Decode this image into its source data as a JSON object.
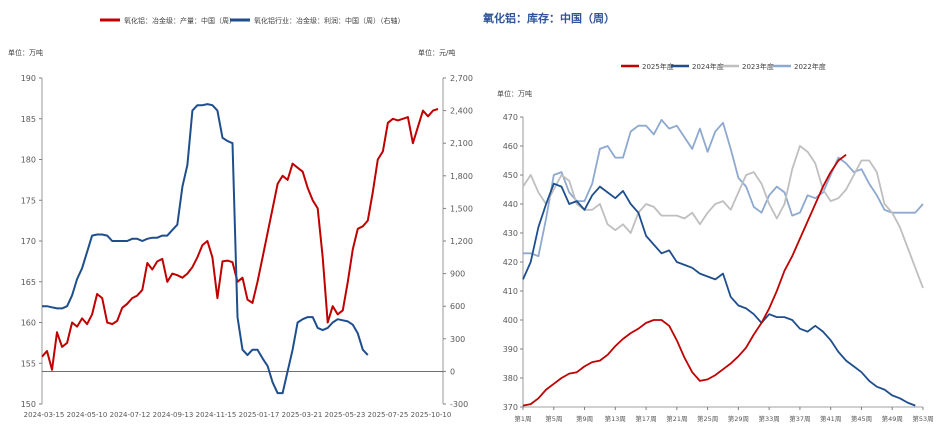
{
  "chart_data": [
    {
      "type": "line",
      "title": "",
      "legend": [
        {
          "name": "氧化铝：冶金级：产量：中国（周）",
          "color": "#c00000",
          "axis": "left"
        },
        {
          "name": "氧化铝行业：冶金级：利润：中国（周）（右轴）",
          "color": "#1f4e8c",
          "axis": "right"
        }
      ],
      "left_unit": "单位：万吨",
      "right_unit": "单位：元/吨",
      "left_ylim": [
        150,
        190
      ],
      "left_ticks": [
        "150",
        "155",
        "160",
        "165",
        "170",
        "175",
        "180",
        "185",
        "190"
      ],
      "right_ylim": [
        -300,
        2700
      ],
      "right_ticks": [
        "-300",
        "0",
        "300",
        "600",
        "900",
        "1,200",
        "1,500",
        "1,800",
        "2,100",
        "2,400",
        "2,700"
      ],
      "x_ticks": [
        "2024-03-15",
        "2024-05-10",
        "2024-07-12",
        "2024-09-13",
        "2024-11-15",
        "2025-01-17",
        "2025-03-21",
        "2025-05-23",
        "2025-07-25",
        "2025-10-10"
      ],
      "series": [
        {
          "name": "氧化铝：冶金级：产量：中国（周）",
          "axis": "left",
          "values": [
            [
              0,
              155.8
            ],
            [
              1,
              156.5
            ],
            [
              2,
              154.2
            ],
            [
              3,
              158.8
            ],
            [
              4,
              157.0
            ],
            [
              5,
              157.5
            ],
            [
              6,
              160.0
            ],
            [
              7,
              159.5
            ],
            [
              8,
              160.5
            ],
            [
              9,
              159.8
            ],
            [
              10,
              161.0
            ],
            [
              11,
              163.5
            ],
            [
              12,
              163.0
            ],
            [
              13,
              160.0
            ],
            [
              14,
              159.8
            ],
            [
              15,
              160.2
            ],
            [
              16,
              161.8
            ],
            [
              17,
              162.3
            ],
            [
              18,
              163.0
            ],
            [
              19,
              163.3
            ],
            [
              20,
              164.0
            ],
            [
              21,
              167.3
            ],
            [
              22,
              166.5
            ],
            [
              23,
              167.5
            ],
            [
              24,
              167.8
            ],
            [
              25,
              165.0
            ],
            [
              26,
              166.0
            ],
            [
              27,
              165.8
            ],
            [
              28,
              165.5
            ],
            [
              29,
              166.0
            ],
            [
              30,
              166.8
            ],
            [
              31,
              168.0
            ],
            [
              32,
              169.5
            ],
            [
              33,
              170.0
            ],
            [
              34,
              168.0
            ],
            [
              35,
              163.0
            ],
            [
              36,
              167.5
            ],
            [
              37,
              167.6
            ],
            [
              38,
              167.4
            ],
            [
              39,
              165.0
            ],
            [
              40,
              165.5
            ],
            [
              41,
              162.8
            ],
            [
              42,
              162.4
            ],
            [
              43,
              165.0
            ],
            [
              44,
              168.0
            ],
            [
              45,
              171.0
            ],
            [
              46,
              174.0
            ],
            [
              47,
              177.0
            ],
            [
              48,
              178.0
            ],
            [
              49,
              177.5
            ],
            [
              50,
              179.5
            ],
            [
              51,
              179.0
            ],
            [
              52,
              178.5
            ],
            [
              53,
              176.5
            ],
            [
              54,
              175.0
            ],
            [
              55,
              174.0
            ],
            [
              56,
              168.0
            ],
            [
              57,
              160.0
            ],
            [
              58,
              162.0
            ],
            [
              59,
              161.0
            ],
            [
              60,
              161.5
            ],
            [
              61,
              165.0
            ],
            [
              62,
              169.0
            ],
            [
              63,
              171.5
            ],
            [
              64,
              171.8
            ],
            [
              65,
              172.5
            ],
            [
              66,
              176.0
            ],
            [
              67,
              180.0
            ],
            [
              68,
              181.0
            ],
            [
              69,
              184.5
            ],
            [
              70,
              185.0
            ],
            [
              71,
              184.8
            ],
            [
              72,
              185.0
            ],
            [
              73,
              185.2
            ],
            [
              74,
              182.0
            ],
            [
              75,
              184.0
            ],
            [
              76,
              186.0
            ],
            [
              77,
              185.3
            ],
            [
              78,
              186.0
            ],
            [
              79,
              186.2
            ]
          ]
        },
        {
          "name": "氧化铝行业：冶金级：利润：中国（周）（右轴）",
          "axis": "right",
          "values": [
            [
              0,
              600
            ],
            [
              1,
              600
            ],
            [
              2,
              590
            ],
            [
              3,
              580
            ],
            [
              4,
              580
            ],
            [
              5,
              600
            ],
            [
              6,
              700
            ],
            [
              7,
              850
            ],
            [
              8,
              950
            ],
            [
              9,
              1100
            ],
            [
              10,
              1250
            ],
            [
              11,
              1260
            ],
            [
              12,
              1260
            ],
            [
              13,
              1250
            ],
            [
              14,
              1200
            ],
            [
              15,
              1200
            ],
            [
              16,
              1200
            ],
            [
              17,
              1200
            ],
            [
              18,
              1220
            ],
            [
              19,
              1220
            ],
            [
              20,
              1200
            ],
            [
              21,
              1220
            ],
            [
              22,
              1230
            ],
            [
              23,
              1230
            ],
            [
              24,
              1250
            ],
            [
              25,
              1250
            ],
            [
              26,
              1300
            ],
            [
              27,
              1350
            ],
            [
              28,
              1700
            ],
            [
              29,
              1900
            ],
            [
              30,
              2400
            ],
            [
              31,
              2450
            ],
            [
              32,
              2450
            ],
            [
              33,
              2460
            ],
            [
              34,
              2450
            ],
            [
              35,
              2400
            ],
            [
              36,
              2150
            ],
            [
              37,
              2120
            ],
            [
              38,
              2100
            ],
            [
              39,
              500
            ],
            [
              40,
              200
            ],
            [
              41,
              150
            ],
            [
              42,
              200
            ],
            [
              43,
              200
            ],
            [
              44,
              120
            ],
            [
              45,
              50
            ],
            [
              46,
              -100
            ],
            [
              47,
              -200
            ],
            [
              48,
              -200
            ],
            [
              49,
              0
            ],
            [
              50,
              200
            ],
            [
              51,
              450
            ],
            [
              52,
              480
            ],
            [
              53,
              500
            ],
            [
              54,
              500
            ],
            [
              55,
              400
            ],
            [
              56,
              380
            ],
            [
              57,
              400
            ],
            [
              58,
              450
            ],
            [
              59,
              480
            ],
            [
              60,
              470
            ],
            [
              61,
              460
            ],
            [
              62,
              430
            ],
            [
              63,
              350
            ],
            [
              64,
              200
            ],
            [
              65,
              150
            ]
          ]
        }
      ]
    },
    {
      "type": "line",
      "title": "氧化铝：库存：中国（周）",
      "unit": "单位：万吨",
      "ylim": [
        370,
        470
      ],
      "y_ticks": [
        "370",
        "380",
        "390",
        "400",
        "410",
        "420",
        "430",
        "440",
        "450",
        "460",
        "470"
      ],
      "x_ticks": [
        "第1周",
        "第5周",
        "第9周",
        "第13周",
        "第17周",
        "第21周",
        "第25周",
        "第29周",
        "第33周",
        "第37周",
        "第41周",
        "第45周",
        "第49周",
        "第53周"
      ],
      "series": [
        {
          "name": "2025年度",
          "color": "#c00000",
          "values": [
            370.5,
            371,
            373,
            376,
            378,
            380,
            381.5,
            382,
            384,
            385.5,
            386,
            388,
            391,
            393.5,
            395.5,
            397,
            399,
            400,
            400,
            398,
            393,
            387,
            382,
            379,
            379.5,
            381,
            383,
            385,
            387.5,
            390.5,
            395,
            399,
            404,
            410,
            417,
            422,
            428,
            434,
            440,
            446,
            451,
            455,
            457
          ]
        },
        {
          "name": "2024年度",
          "color": "#1f4e8c",
          "values": [
            414,
            420,
            432,
            440,
            447,
            446,
            440,
            441,
            438,
            443,
            446,
            444,
            442,
            444.5,
            440,
            437,
            429,
            426,
            423,
            424,
            420,
            419,
            418,
            416,
            415,
            414,
            416,
            408,
            405,
            404,
            402,
            399,
            402,
            401,
            401,
            400,
            397,
            396,
            398,
            396,
            393,
            389,
            386,
            384,
            382,
            379,
            377,
            376,
            374,
            373,
            371.5,
            370.5
          ]
        },
        {
          "name": "2023年度",
          "color": "#bfbfbf",
          "values": [
            446,
            450,
            444,
            440,
            445,
            450,
            448,
            440,
            438,
            438,
            440,
            433,
            431,
            433,
            430,
            437,
            440,
            439,
            436,
            436,
            436,
            435,
            437,
            433,
            437,
            440,
            441,
            438,
            444,
            450,
            451,
            447,
            440,
            435,
            440,
            452,
            460,
            458,
            454,
            445,
            441,
            442,
            445,
            450,
            455,
            455,
            451,
            440,
            437,
            432,
            425,
            418,
            411
          ]
        },
        {
          "name": "2022年度",
          "color": "#8ea9cf",
          "values": [
            423,
            423,
            422,
            435,
            450,
            451,
            444,
            441,
            441,
            447,
            459,
            460,
            456,
            456,
            465,
            467,
            467,
            464,
            469,
            466,
            467,
            463,
            459,
            466,
            458,
            465,
            468,
            459,
            449,
            446,
            439,
            437,
            443,
            446,
            444,
            436,
            437,
            443,
            442,
            444,
            450,
            456,
            454,
            451,
            452,
            447,
            443,
            438,
            437,
            437,
            437,
            437,
            440
          ]
        }
      ]
    }
  ]
}
